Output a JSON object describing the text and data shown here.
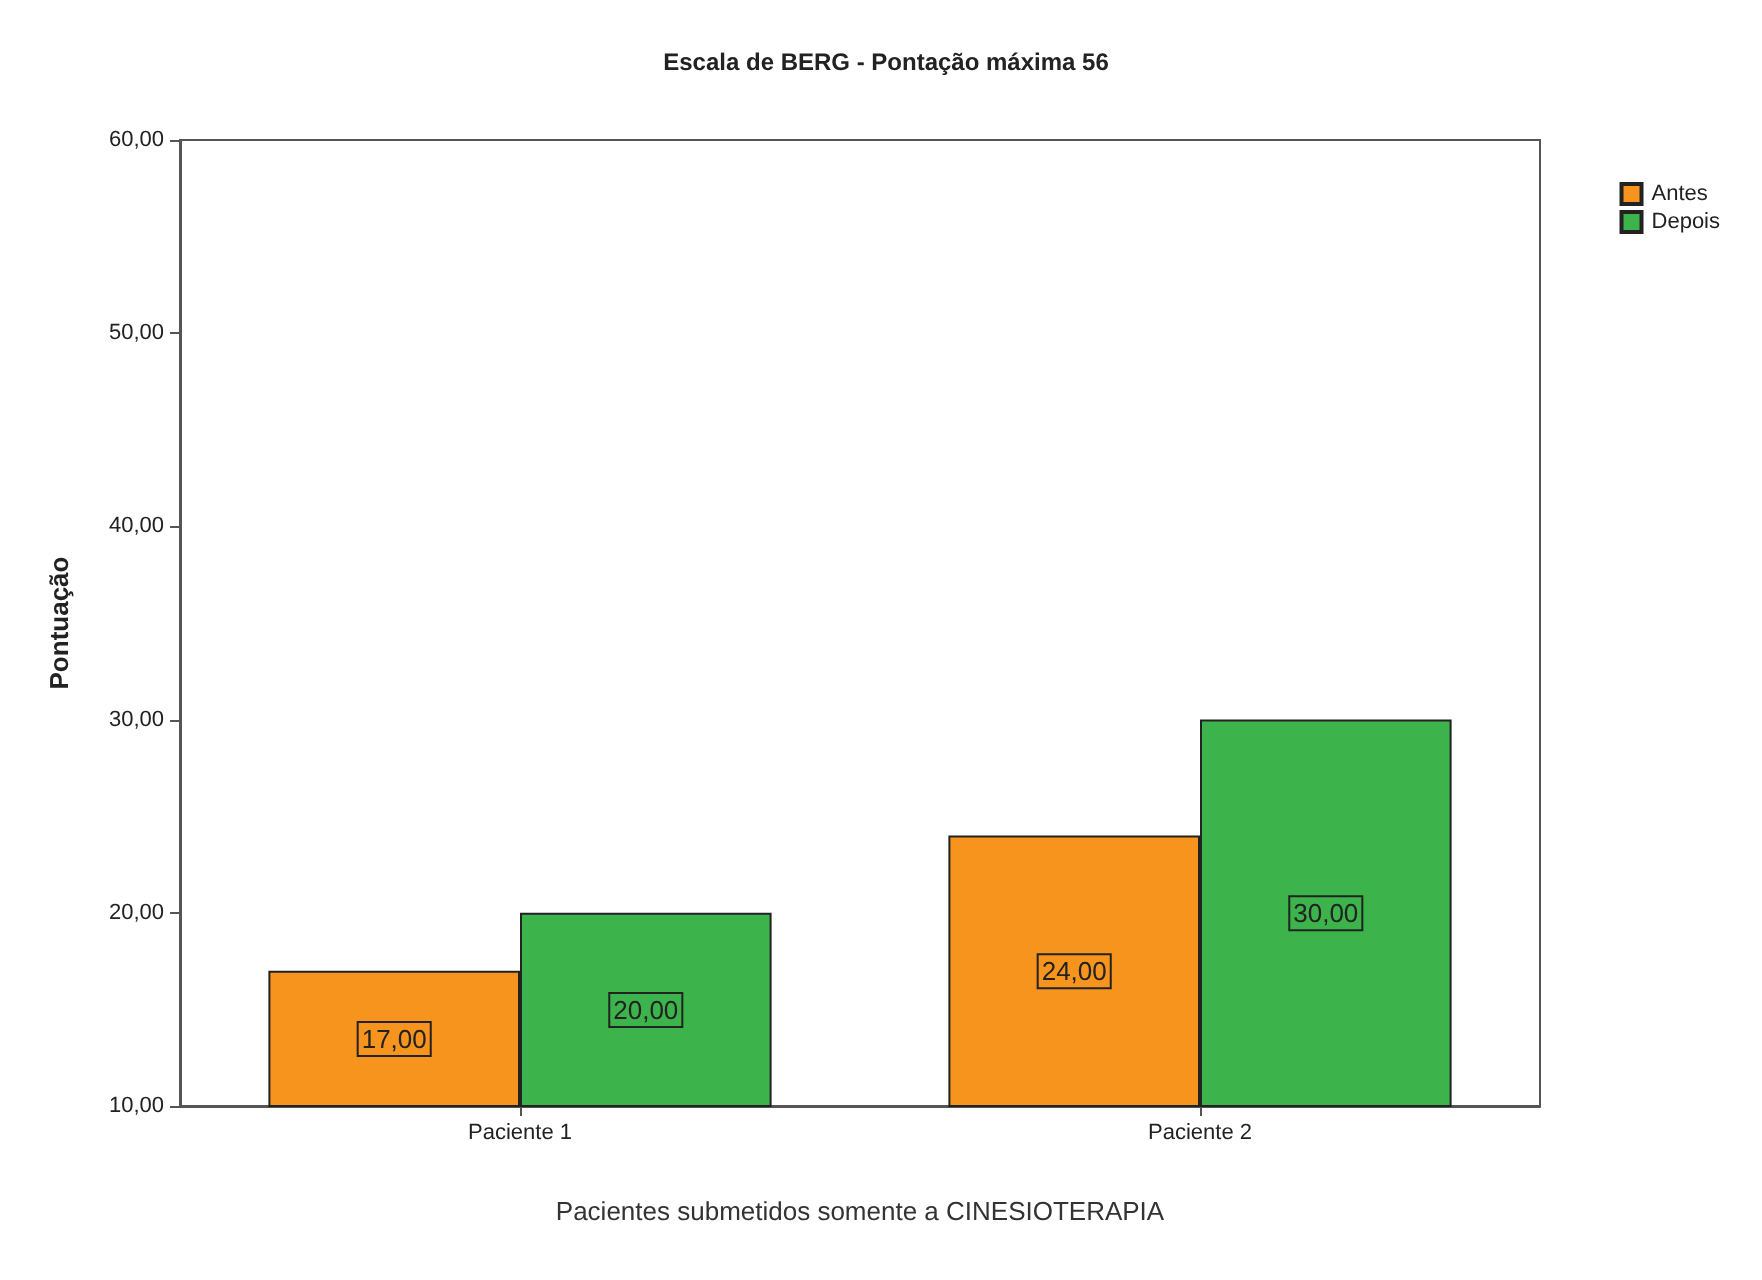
{
  "chart_data": {
    "type": "bar",
    "title": "Escala de BERG - Pontação máxima 56",
    "xlabel": "Pacientes submetidos somente a CINESIOTERAPIA",
    "ylabel": "Pontuação",
    "categories": [
      "Paciente 1",
      "Paciente 2"
    ],
    "series": [
      {
        "name": "Antes",
        "color": "#f7941d",
        "values": [
          17,
          24
        ],
        "value_labels": [
          "17,00",
          "24,00"
        ]
      },
      {
        "name": "Depois",
        "color": "#3cb44b",
        "values": [
          20,
          30
        ],
        "value_labels": [
          "20,00",
          "30,00"
        ]
      }
    ],
    "ylim": [
      10,
      60
    ],
    "yticks": [
      {
        "value": 10,
        "label": "10,00"
      },
      {
        "value": 20,
        "label": "20,00"
      },
      {
        "value": 30,
        "label": "30,00"
      },
      {
        "value": 40,
        "label": "40,00"
      },
      {
        "value": 50,
        "label": "50,00"
      },
      {
        "value": 60,
        "label": "60,00"
      }
    ],
    "grid": false,
    "legend": "top right"
  }
}
